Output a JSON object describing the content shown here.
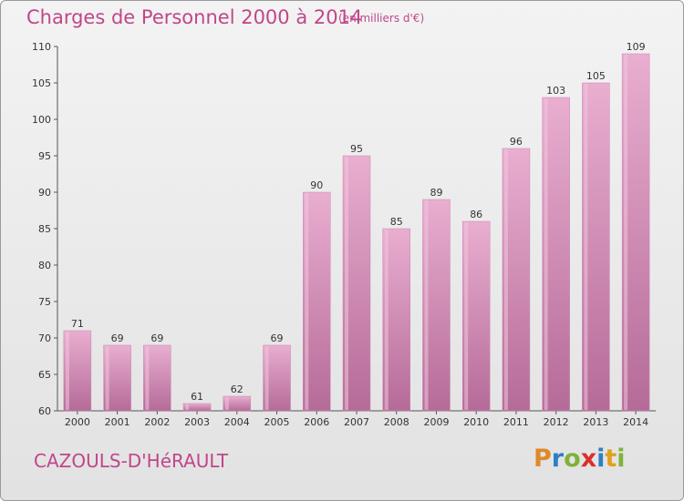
{
  "header": {
    "title": "Charges de Personnel 2000 à 2014",
    "subtitle": "(en milliers d'€)"
  },
  "footer": {
    "city": "CAZOULS-D'HéRAULT",
    "logo_letters": [
      "P",
      "r",
      "o",
      "x",
      "i",
      "t",
      "i"
    ],
    "logo_colors": [
      "#e0882a",
      "#2f7fc4",
      "#7fb23a",
      "#d9302c",
      "#2f7fc4",
      "#e0a020",
      "#7fb23a"
    ]
  },
  "colors": {
    "bar": "#d98cb8",
    "bar_light": "#e6a9cb",
    "bar_dark": "#b86a9a",
    "accent": "#c0468a"
  },
  "chart_data": {
    "type": "bar",
    "title": "Charges de Personnel 2000 à 2014",
    "subtitle": "(en milliers d'€)",
    "categories": [
      "2000",
      "2001",
      "2002",
      "2003",
      "2004",
      "2005",
      "2006",
      "2007",
      "2008",
      "2009",
      "2010",
      "2011",
      "2012",
      "2013",
      "2014"
    ],
    "values": [
      71,
      69,
      69,
      61,
      62,
      69,
      90,
      95,
      85,
      89,
      86,
      96,
      103,
      105,
      109
    ],
    "ylim": [
      60,
      110
    ],
    "yticks": [
      60,
      65,
      70,
      75,
      80,
      85,
      90,
      95,
      100,
      105,
      110
    ],
    "grid": false,
    "xlabel": "",
    "ylabel": ""
  }
}
